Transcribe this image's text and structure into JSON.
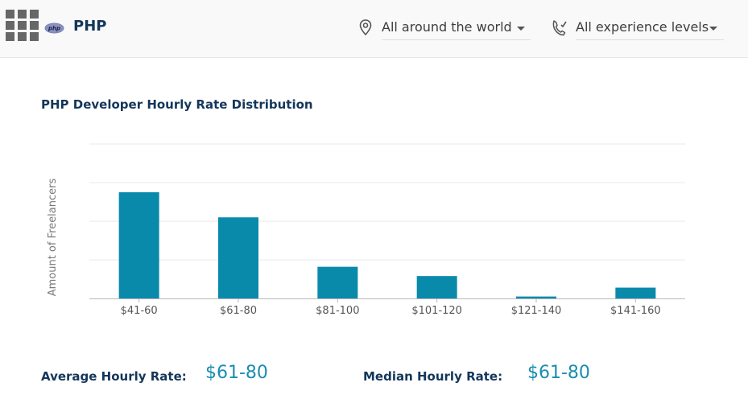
{
  "header": {
    "title": "PHP",
    "logo_text": "php",
    "location_filter": {
      "value": "All around the world",
      "icon": "location-pin-icon"
    },
    "experience_filter": {
      "value": "All experience levels",
      "icon": "experience-icon"
    }
  },
  "chart_data": {
    "type": "bar",
    "title": "PHP Developer Hourly Rate Distribution",
    "xlabel": "",
    "ylabel": "Amount of Freelancers",
    "categories": [
      "$41-60",
      "$61-80",
      "$81-100",
      "$101-120",
      "$121-140",
      "$141-160"
    ],
    "values": [
      2.75,
      2.1,
      0.82,
      0.58,
      0.05,
      0.28
    ],
    "ylim": [
      0,
      4
    ],
    "grid": true,
    "bar_color": "#0a8aab"
  },
  "summary": {
    "average_label": "Average Hourly Rate:",
    "average_value": "$61-80",
    "median_label": "Median Hourly Rate:",
    "median_value": "$61-80"
  }
}
